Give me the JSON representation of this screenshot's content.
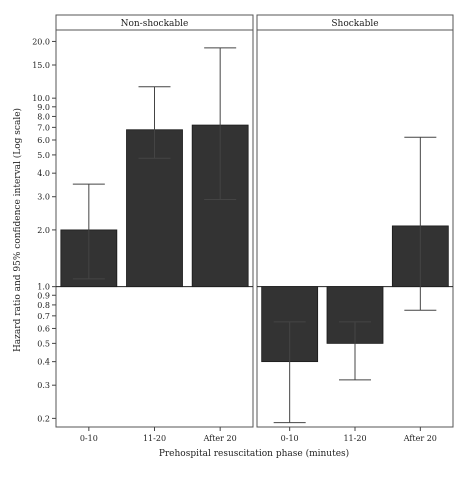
{
  "chart_data": {
    "type": "bar",
    "y_scale": "log",
    "baseline": 1.0,
    "ylabel": "Hazard ratio and 95% confidence interval (Log scale)",
    "xlabel": "Prehospital resuscitation phase (minutes)",
    "ylim": [
      0.18,
      23
    ],
    "y_ticks": [
      0.2,
      0.3,
      0.4,
      0.5,
      0.6,
      0.7,
      0.8,
      0.9,
      1.0,
      2.0,
      3.0,
      4.0,
      5.0,
      6.0,
      7.0,
      8.0,
      9.0,
      10.0,
      15.0,
      20.0
    ],
    "y_tick_labels": [
      "0.2",
      "0.3",
      "0.4",
      "0.5",
      "0.6",
      "0.7",
      "0.8",
      "0.9",
      "1.0",
      "2.0",
      "3.0",
      "4.0",
      "5.0",
      "6.0",
      "7.0",
      "8.0",
      "9.0",
      "10.0",
      "15.0",
      "20.0"
    ],
    "panels": [
      {
        "title": "Non-shockable",
        "categories": [
          "0-10",
          "11-20",
          "After 20"
        ],
        "values": [
          2.0,
          6.8,
          7.2
        ],
        "ci_lower": [
          1.1,
          4.8,
          2.9
        ],
        "ci_upper": [
          3.5,
          11.5,
          18.5
        ]
      },
      {
        "title": "Shockable",
        "categories": [
          "0-10",
          "11-20",
          "After 20"
        ],
        "values": [
          0.4,
          0.5,
          2.1
        ],
        "ci_lower": [
          0.19,
          0.32,
          0.75
        ],
        "ci_upper": [
          0.65,
          0.65,
          6.2
        ]
      }
    ],
    "colors": {
      "bar": "#333333",
      "frame": "#555555",
      "strip": "#ffffff"
    }
  }
}
